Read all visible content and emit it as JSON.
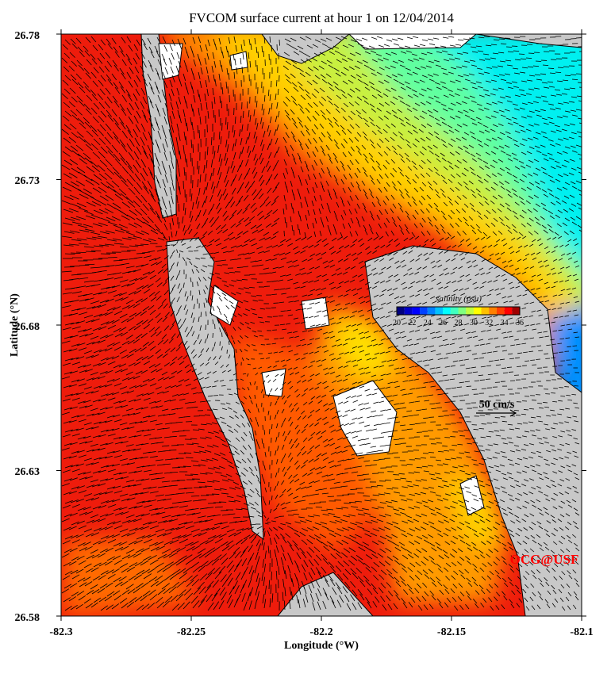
{
  "chart_data": {
    "type": "map",
    "title": "FVCOM surface current at hour 1 on 12/04/2014",
    "xlabel": "Longitude (°W)",
    "ylabel": "Latitude (°N)",
    "xlim": [
      -82.3,
      -82.1
    ],
    "ylim": [
      26.58,
      26.78
    ],
    "x_ticks": [
      "-82.3",
      "-82.25",
      "-82.2",
      "-82.15",
      "-82.1"
    ],
    "y_ticks": [
      "26.58",
      "26.63",
      "26.68",
      "26.73",
      "26.78"
    ],
    "colorbar": {
      "label": "salinity (psu)",
      "range": [
        20,
        36
      ],
      "tick_labels": [
        "20",
        "22",
        "24",
        "26",
        "28",
        "30",
        "32",
        "34",
        "36"
      ],
      "colors": [
        "#00007f",
        "#0000c8",
        "#0000ff",
        "#0040ff",
        "#0080ff",
        "#00c0ff",
        "#00ffff",
        "#40ffc0",
        "#80ff80",
        "#c0ff40",
        "#ffff00",
        "#ffc000",
        "#ff8000",
        "#ff4000",
        "#ff0000",
        "#a00000"
      ]
    },
    "scale_vector_label": "50 cm/s",
    "annotation": "OCG@USF",
    "colors": {
      "land": "#c8c8c8",
      "dry_cell": "#ffffff",
      "vector": "#000000",
      "annotation": "#ff0000"
    }
  }
}
